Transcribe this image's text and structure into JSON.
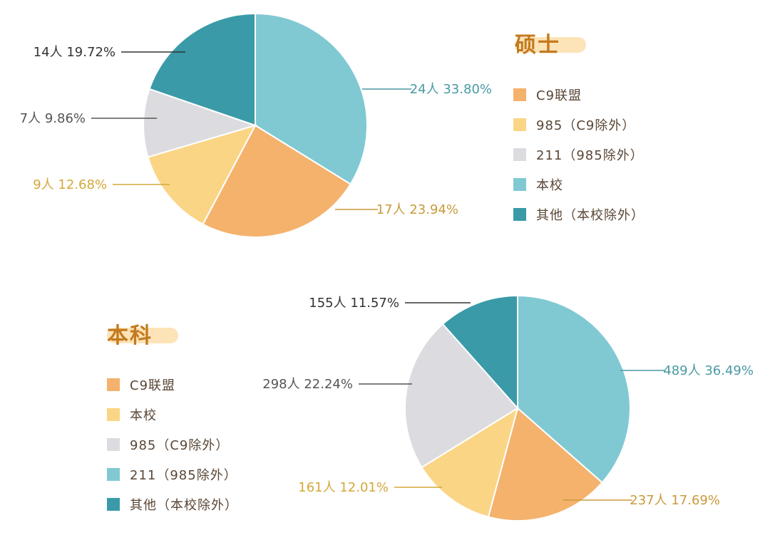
{
  "chart_data": [
    {
      "type": "pie",
      "title": "硕士",
      "legend": [
        {
          "label": "C9联盟",
          "color": "#f4b26d"
        },
        {
          "label": "985（C9除外）",
          "color": "#fbd586"
        },
        {
          "label": "211（985除外）",
          "color": "#dcdce0"
        },
        {
          "label": "本校",
          "color": "#80c9d3"
        },
        {
          "label": "其他（本校除外）",
          "color": "#3a9aa8"
        }
      ],
      "slices": [
        {
          "label": "本校",
          "count": 24,
          "percent": 33.8,
          "color": "#80c9d3",
          "text": "24人 33.80%",
          "text_color": "#4a9aa4"
        },
        {
          "label": "C9联盟",
          "count": 17,
          "percent": 23.94,
          "color": "#f4b26d",
          "text": "17人 23.94%",
          "text_color": "#c89a3a"
        },
        {
          "label": "985（C9除外）",
          "count": 9,
          "percent": 12.68,
          "color": "#fbd586",
          "text": "9人 12.68%",
          "text_color": "#d4a83a"
        },
        {
          "label": "211（985除外）",
          "count": 7,
          "percent": 9.86,
          "color": "#dcdce0",
          "text": "7人 9.86%",
          "text_color": "#555555"
        },
        {
          "label": "其他（本校除外）",
          "count": 14,
          "percent": 19.72,
          "color": "#3a9aa8",
          "text": "14人 19.72%",
          "text_color": "#333333"
        }
      ]
    },
    {
      "type": "pie",
      "title": "本科",
      "legend": [
        {
          "label": "C9联盟",
          "color": "#f4b26d"
        },
        {
          "label": "本校",
          "color": "#fbd586"
        },
        {
          "label": "985（C9除外）",
          "color": "#dcdce0"
        },
        {
          "label": "211（985除外）",
          "color": "#80c9d3"
        },
        {
          "label": "其他（本校除外）",
          "color": "#3a9aa8"
        }
      ],
      "slices": [
        {
          "label": "211（985除外）",
          "count": 489,
          "percent": 36.49,
          "color": "#80c9d3",
          "text": "489人 36.49%",
          "text_color": "#4a9aa4"
        },
        {
          "label": "C9联盟",
          "count": 237,
          "percent": 17.69,
          "color": "#f4b26d",
          "text": "237人 17.69%",
          "text_color": "#c89a3a"
        },
        {
          "label": "本校",
          "count": 161,
          "percent": 12.01,
          "color": "#fbd586",
          "text": "161人 12.01%",
          "text_color": "#d4a83a"
        },
        {
          "label": "985（C9除外）",
          "count": 298,
          "percent": 22.24,
          "color": "#dcdce0",
          "text": "298人 22.24%",
          "text_color": "#555555"
        },
        {
          "label": "其他（本校除外）",
          "count": 155,
          "percent": 11.57,
          "color": "#3a9aa8",
          "text": "155人 11.57%",
          "text_color": "#333333"
        }
      ]
    }
  ]
}
